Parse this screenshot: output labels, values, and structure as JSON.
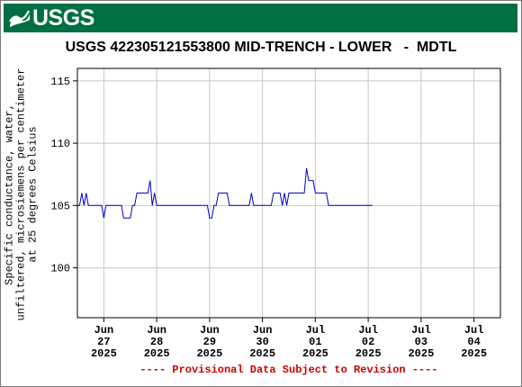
{
  "header": {
    "logo_text": "USGS",
    "banner_color": "#006f41"
  },
  "chart_data": {
    "type": "line",
    "title": "USGS 422305121553800 MID-TRENCH - LOWER   -  MDTL",
    "ylabel_lines": [
      "Specific conductance, water,",
      "unfiltered, microsiemens per centimeter",
      "at 25 degrees Celsius"
    ],
    "ylim": [
      96,
      116
    ],
    "yticks": [
      100,
      105,
      110,
      115
    ],
    "xlim": [
      "2025-06-26T12:00",
      "2025-07-04T12:00"
    ],
    "xticks": [
      {
        "date": "2025-06-27",
        "label": [
          "Jun",
          "27",
          "2025"
        ]
      },
      {
        "date": "2025-06-28",
        "label": [
          "Jun",
          "28",
          "2025"
        ]
      },
      {
        "date": "2025-06-29",
        "label": [
          "Jun",
          "29",
          "2025"
        ]
      },
      {
        "date": "2025-06-30",
        "label": [
          "Jun",
          "30",
          "2025"
        ]
      },
      {
        "date": "2025-07-01",
        "label": [
          "Jul",
          "01",
          "2025"
        ]
      },
      {
        "date": "2025-07-02",
        "label": [
          "Jul",
          "02",
          "2025"
        ]
      },
      {
        "date": "2025-07-03",
        "label": [
          "Jul",
          "03",
          "2025"
        ]
      },
      {
        "date": "2025-07-04",
        "label": [
          "Jul",
          "04",
          "2025"
        ]
      }
    ],
    "grid": true,
    "line_color": "#0000cc",
    "series": [
      {
        "points": [
          [
            "2025-06-26T12:00",
            105
          ],
          [
            "2025-06-26T13:00",
            105
          ],
          [
            "2025-06-26T14:00",
            106
          ],
          [
            "2025-06-26T15:00",
            105
          ],
          [
            "2025-06-26T16:00",
            106
          ],
          [
            "2025-06-26T17:00",
            105
          ],
          [
            "2025-06-26T18:00",
            105
          ],
          [
            "2025-06-26T20:00",
            105
          ],
          [
            "2025-06-26T23:00",
            105
          ],
          [
            "2025-06-27T00:00",
            104
          ],
          [
            "2025-06-27T01:00",
            105
          ],
          [
            "2025-06-27T06:00",
            105
          ],
          [
            "2025-06-27T08:00",
            105
          ],
          [
            "2025-06-27T09:00",
            104
          ],
          [
            "2025-06-27T12:00",
            104
          ],
          [
            "2025-06-27T13:00",
            105
          ],
          [
            "2025-06-27T14:00",
            105
          ],
          [
            "2025-06-27T15:00",
            106
          ],
          [
            "2025-06-27T20:00",
            106
          ],
          [
            "2025-06-27T21:00",
            107
          ],
          [
            "2025-06-27T22:00",
            105
          ],
          [
            "2025-06-27T23:00",
            106
          ],
          [
            "2025-06-28T00:00",
            105
          ],
          [
            "2025-06-28T06:00",
            105
          ],
          [
            "2025-06-28T12:00",
            105
          ],
          [
            "2025-06-28T18:00",
            105
          ],
          [
            "2025-06-28T23:00",
            105
          ],
          [
            "2025-06-29T00:00",
            104
          ],
          [
            "2025-06-29T01:00",
            104
          ],
          [
            "2025-06-29T02:00",
            105
          ],
          [
            "2025-06-29T03:00",
            105
          ],
          [
            "2025-06-29T04:00",
            106
          ],
          [
            "2025-06-29T08:00",
            106
          ],
          [
            "2025-06-29T09:00",
            105
          ],
          [
            "2025-06-29T12:00",
            105
          ],
          [
            "2025-06-29T18:00",
            105
          ],
          [
            "2025-06-29T19:00",
            106
          ],
          [
            "2025-06-29T20:00",
            105
          ],
          [
            "2025-06-30T00:00",
            105
          ],
          [
            "2025-06-30T04:00",
            105
          ],
          [
            "2025-06-30T05:00",
            106
          ],
          [
            "2025-06-30T08:00",
            106
          ],
          [
            "2025-06-30T09:00",
            105
          ],
          [
            "2025-06-30T10:00",
            106
          ],
          [
            "2025-06-30T11:00",
            105
          ],
          [
            "2025-06-30T12:00",
            106
          ],
          [
            "2025-06-30T18:00",
            106
          ],
          [
            "2025-06-30T19:00",
            106
          ],
          [
            "2025-06-30T20:00",
            108
          ],
          [
            "2025-06-30T21:00",
            107
          ],
          [
            "2025-06-30T23:00",
            107
          ],
          [
            "2025-07-01T00:00",
            106
          ],
          [
            "2025-07-01T05:00",
            106
          ],
          [
            "2025-07-01T06:00",
            105
          ],
          [
            "2025-07-01T12:00",
            105
          ],
          [
            "2025-07-01T18:00",
            105
          ],
          [
            "2025-07-02T02:00",
            105
          ]
        ]
      }
    ]
  },
  "footer": {
    "text": "---- Provisional Data Subject to Revision ----",
    "color": "#cc0000"
  }
}
